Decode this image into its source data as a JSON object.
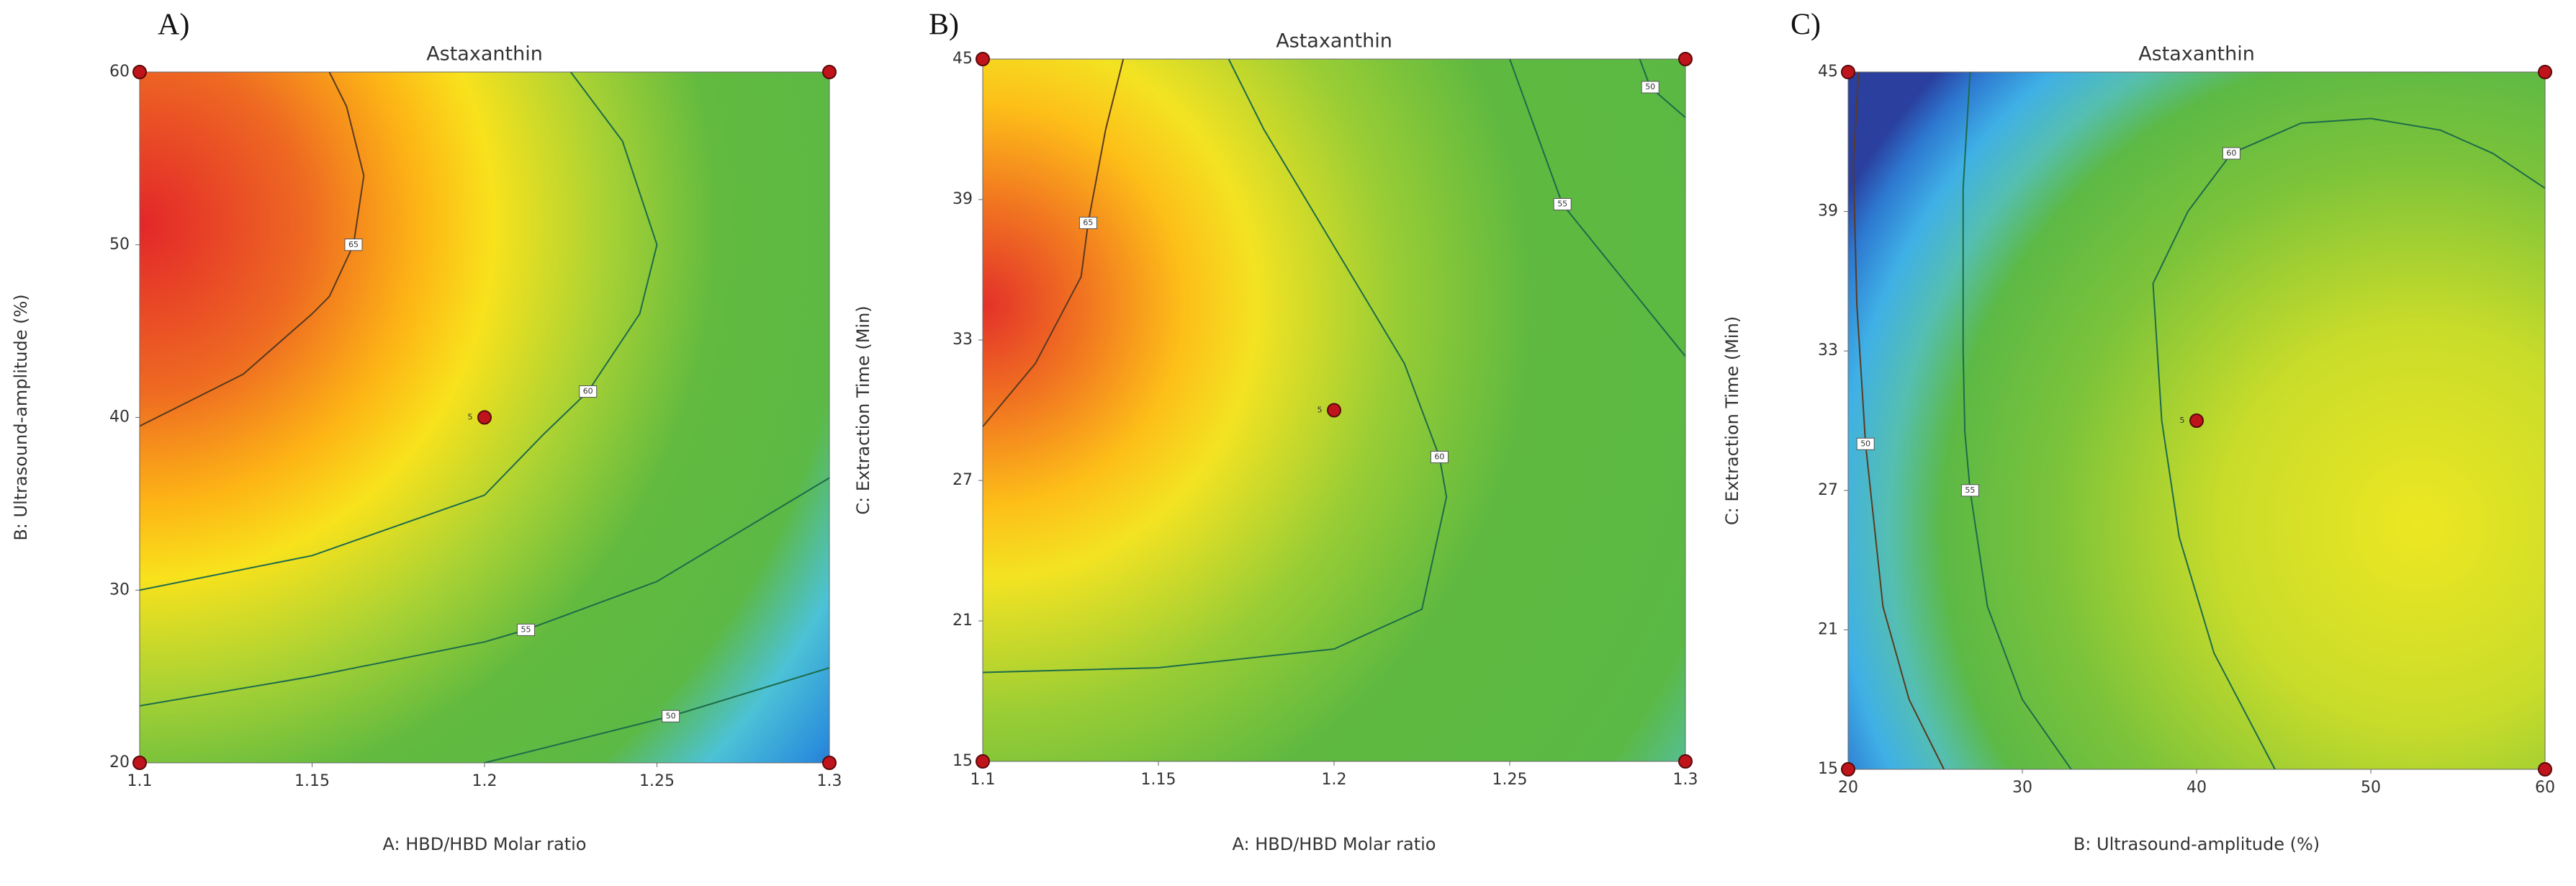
{
  "chart_data": [
    {
      "type": "contour",
      "panel_label": "A)",
      "title": "Astaxanthin",
      "x_label": "A: HBD/HBD Molar ratio",
      "y_label": "B: Ultrasound-amplitude  (%)",
      "xlim": [
        1.1,
        1.3
      ],
      "ylim": [
        20,
        60
      ],
      "xticks": [
        1.1,
        1.15,
        1.2,
        1.25,
        1.3
      ],
      "yticks": [
        20,
        30,
        40,
        50,
        60
      ],
      "contours": [
        {
          "level": 65,
          "x": [
            1.1,
            1.13,
            1.15,
            1.155,
            1.162,
            1.165,
            1.16,
            1.155
          ],
          "y": [
            39.5,
            42.5,
            46,
            47,
            50,
            54,
            58,
            60
          ]
        },
        {
          "level": 60,
          "x": [
            1.1,
            1.15,
            1.2,
            1.217,
            1.23,
            1.245,
            1.25,
            1.24,
            1.225
          ],
          "y": [
            30,
            32,
            35.5,
            39,
            41.5,
            46,
            50,
            56,
            60
          ]
        },
        {
          "level": 55,
          "x": [
            1.1,
            1.15,
            1.2,
            1.212,
            1.25,
            1.3
          ],
          "y": [
            23.3,
            25,
            27,
            27.7,
            30.5,
            36.5
          ]
        },
        {
          "level": 50,
          "x": [
            1.2,
            1.254,
            1.3
          ],
          "y": [
            20,
            22.7,
            25.5
          ]
        }
      ],
      "design_points": {
        "x": [
          1.1,
          1.3,
          1.1,
          1.3,
          1.2
        ],
        "y": [
          60,
          60,
          20,
          20,
          40
        ]
      },
      "center_count": 5
    },
    {
      "type": "contour",
      "panel_label": "B)",
      "title": "Astaxanthin",
      "x_label": "A: HBD/HBD Molar ratio",
      "y_label": "C: Extraction Time (Min)",
      "xlim": [
        1.1,
        1.3
      ],
      "ylim": [
        15,
        45
      ],
      "xticks": [
        1.1,
        1.15,
        1.2,
        1.25,
        1.3
      ],
      "yticks": [
        15,
        21,
        27,
        33,
        39,
        45
      ],
      "contours": [
        {
          "level": 65,
          "x": [
            1.1,
            1.115,
            1.128,
            1.13,
            1.135,
            1.14
          ],
          "y": [
            29.3,
            32,
            35.7,
            38,
            42,
            45
          ]
        },
        {
          "level": 60,
          "x": [
            1.1,
            1.15,
            1.2,
            1.225,
            1.232,
            1.23,
            1.22,
            1.2,
            1.18,
            1.17
          ],
          "y": [
            18.8,
            19,
            19.8,
            21.5,
            26.3,
            28,
            32,
            37,
            42,
            45
          ]
        },
        {
          "level": 55,
          "x": [
            1.25,
            1.265,
            1.3
          ],
          "y": [
            45,
            38.8,
            32.3
          ]
        },
        {
          "level": 50,
          "x": [
            1.287,
            1.29,
            1.3
          ],
          "y": [
            45,
            43.8,
            42.5
          ]
        }
      ],
      "design_points": {
        "x": [
          1.1,
          1.3,
          1.1,
          1.3,
          1.2
        ],
        "y": [
          45,
          45,
          15,
          15,
          30
        ]
      },
      "center_count": 5
    },
    {
      "type": "contour",
      "panel_label": "C)",
      "title": "Astaxanthin",
      "x_label": "B: Ultrasound-amplitude  (%)",
      "y_label": "C: Extraction Time (Min)",
      "xlim": [
        20,
        60
      ],
      "ylim": [
        15,
        45
      ],
      "xticks": [
        20,
        30,
        40,
        50,
        60
      ],
      "yticks": [
        15,
        21,
        27,
        33,
        39,
        45
      ],
      "contours": [
        {
          "level": 50,
          "x": [
            20.6,
            20.3,
            20.5,
            21,
            22,
            23.5,
            25.5
          ],
          "y": [
            45,
            41,
            35,
            29,
            22,
            18,
            15
          ]
        },
        {
          "level": 55,
          "x": [
            27,
            26.6,
            26.6,
            26.7,
            27,
            28,
            30,
            32.8
          ],
          "y": [
            45,
            40,
            33,
            29.5,
            27,
            22,
            18,
            15
          ]
        },
        {
          "level": 60,
          "x": [
            44.5,
            41,
            39,
            38,
            37.5,
            39.5,
            42,
            46,
            50,
            54,
            57,
            60
          ],
          "y": [
            15,
            20,
            25,
            30,
            35.9,
            39,
            41.5,
            42.8,
            43,
            42.5,
            41.5,
            40
          ]
        }
      ],
      "design_points": {
        "x": [
          20,
          60,
          20,
          60,
          40
        ],
        "y": [
          45,
          45,
          15,
          15,
          30
        ]
      },
      "center_count": 5
    }
  ]
}
